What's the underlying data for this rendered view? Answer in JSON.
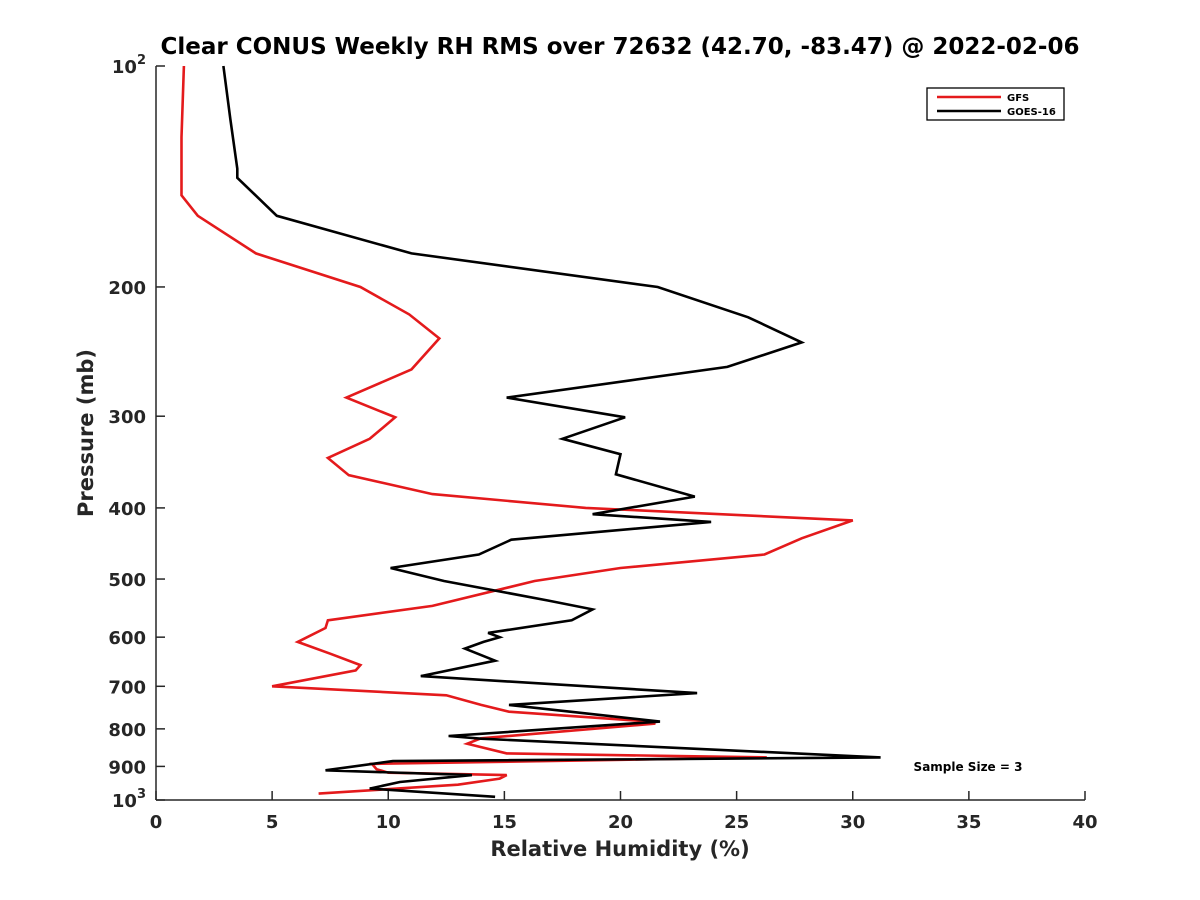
{
  "chart_data": {
    "type": "line",
    "title": "Clear CONUS Weekly RH RMS over 72632 (42.70, -83.47) @ 2022-02-06",
    "xlabel": "Relative Humidity (%)",
    "ylabel": "Pressure (mb)",
    "xlim": [
      0,
      40
    ],
    "ylim": [
      100,
      1000
    ],
    "yscale": "log",
    "y_reversed": true,
    "xticks": [
      "0",
      "5",
      "10",
      "15",
      "20",
      "25",
      "30",
      "35",
      "40"
    ],
    "yticks": [
      {
        "value": 100,
        "base": "10",
        "exp": "2"
      },
      {
        "value": 200,
        "label": "200"
      },
      {
        "value": 300,
        "label": "300"
      },
      {
        "value": 400,
        "label": "400"
      },
      {
        "value": 500,
        "label": "500"
      },
      {
        "value": 600,
        "label": "600"
      },
      {
        "value": 700,
        "label": "700"
      },
      {
        "value": 800,
        "label": "800"
      },
      {
        "value": 900,
        "label": "900"
      },
      {
        "value": 1000,
        "base": "10",
        "exp": "3"
      }
    ],
    "grid": false,
    "legend_position": "top-right",
    "annotation": "Sample Size = 3",
    "series": [
      {
        "name": "GFS",
        "color": "#e41a1c",
        "points": [
          [
            1.2,
            100
          ],
          [
            1.1,
            125
          ],
          [
            1.1,
            150
          ],
          [
            1.8,
            160
          ],
          [
            4.3,
            180
          ],
          [
            8.8,
            200
          ],
          [
            10.9,
            218
          ],
          [
            12.2,
            235
          ],
          [
            11.0,
            259
          ],
          [
            8.2,
            283
          ],
          [
            10.3,
            301
          ],
          [
            9.2,
            322
          ],
          [
            7.4,
            342
          ],
          [
            8.3,
            361
          ],
          [
            11.9,
            383
          ],
          [
            18.5,
            400
          ],
          [
            30.0,
            416
          ],
          [
            27.8,
            440
          ],
          [
            26.2,
            463
          ],
          [
            20.0,
            483
          ],
          [
            16.3,
            503
          ],
          [
            11.9,
            544
          ],
          [
            7.4,
            569
          ],
          [
            7.3,
            583
          ],
          [
            6.1,
            609
          ],
          [
            7.5,
            632
          ],
          [
            8.8,
            655
          ],
          [
            8.6,
            666
          ],
          [
            5.0,
            700
          ],
          [
            12.5,
            720
          ],
          [
            14.0,
            742
          ],
          [
            15.2,
            758
          ],
          [
            21.3,
            782
          ],
          [
            21.5,
            787
          ],
          [
            14.0,
            824
          ],
          [
            13.4,
            838
          ],
          [
            15.1,
            864
          ],
          [
            26.3,
            875
          ],
          [
            9.3,
            893
          ],
          [
            9.5,
            908
          ],
          [
            10.0,
            918
          ],
          [
            15.1,
            925
          ],
          [
            14.8,
            935
          ],
          [
            13.0,
            953
          ],
          [
            7.0,
            980
          ]
        ]
      },
      {
        "name": "GOES-16",
        "color": "#000000",
        "points": [
          [
            2.9,
            100
          ],
          [
            3.2,
            118
          ],
          [
            3.5,
            138
          ],
          [
            3.5,
            142
          ],
          [
            5.2,
            160
          ],
          [
            11.0,
            180
          ],
          [
            21.6,
            200
          ],
          [
            25.5,
            220
          ],
          [
            27.8,
            238
          ],
          [
            24.6,
            257
          ],
          [
            15.1,
            283
          ],
          [
            20.2,
            301
          ],
          [
            17.5,
            322
          ],
          [
            20.0,
            338
          ],
          [
            19.8,
            360
          ],
          [
            23.2,
            386
          ],
          [
            18.8,
            408
          ],
          [
            23.9,
            418
          ],
          [
            15.3,
            442
          ],
          [
            13.9,
            463
          ],
          [
            10.1,
            483
          ],
          [
            12.4,
            503
          ],
          [
            16.9,
            535
          ],
          [
            18.8,
            550
          ],
          [
            17.9,
            569
          ],
          [
            14.3,
            592
          ],
          [
            14.8,
            600
          ],
          [
            14.1,
            609
          ],
          [
            13.3,
            622
          ],
          [
            14.6,
            646
          ],
          [
            11.4,
            678
          ],
          [
            23.3,
            715
          ],
          [
            15.2,
            742
          ],
          [
            21.7,
            782
          ],
          [
            12.6,
            818
          ],
          [
            14.0,
            825
          ],
          [
            31.2,
            875
          ],
          [
            10.2,
            885
          ],
          [
            7.3,
            911
          ],
          [
            13.6,
            925
          ],
          [
            10.5,
            945
          ],
          [
            9.2,
            965
          ],
          [
            14.6,
            990
          ]
        ]
      }
    ]
  }
}
